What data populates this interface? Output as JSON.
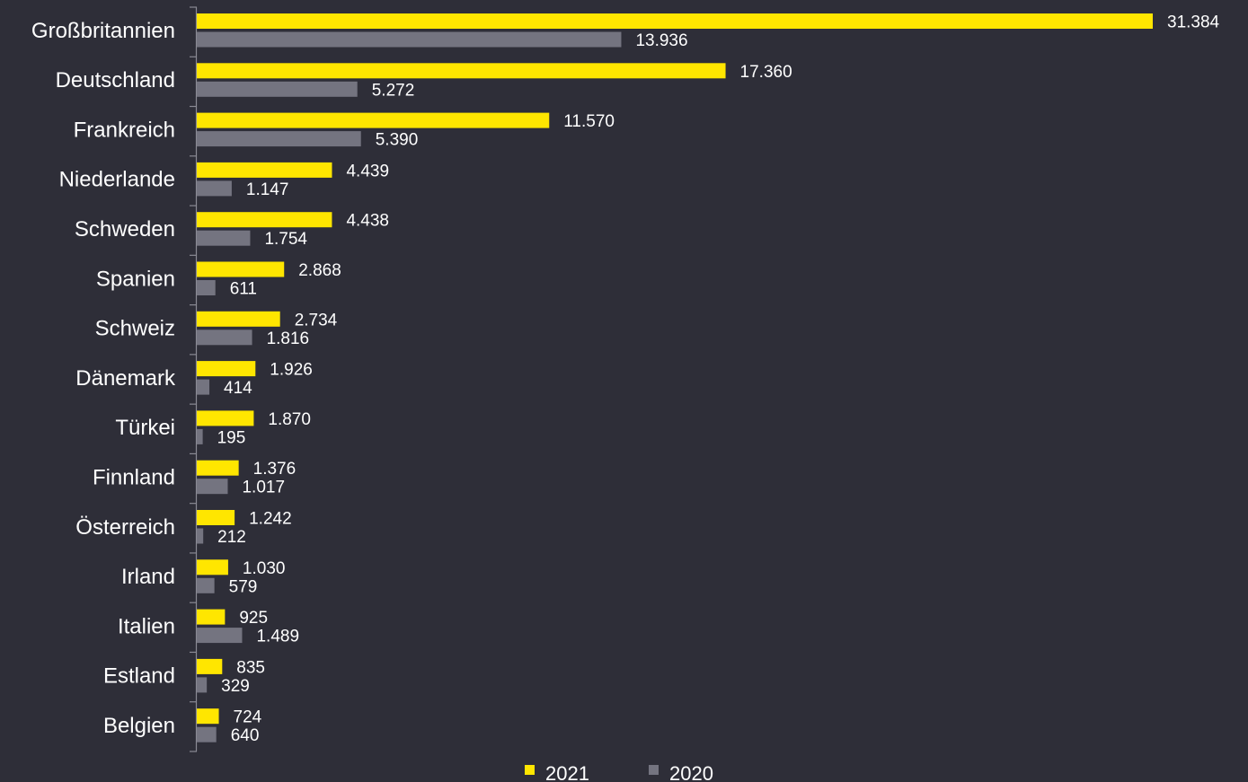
{
  "chart_data": {
    "type": "bar",
    "orientation": "horizontal",
    "categories": [
      "Großbritannien",
      "Deutschland",
      "Frankreich",
      "Niederlande",
      "Schweden",
      "Spanien",
      "Schweiz",
      "Dänemark",
      "Türkei",
      "Finnland",
      "Österreich",
      "Irland",
      "Italien",
      "Estland",
      "Belgien"
    ],
    "series": [
      {
        "name": "2021",
        "color": "#ffe600",
        "values": [
          31384,
          17360,
          11570,
          4439,
          4438,
          2868,
          2734,
          1926,
          1870,
          1376,
          1242,
          1030,
          925,
          835,
          724
        ],
        "labels": [
          "31.384",
          "17.360",
          "11.570",
          "4.439",
          "4.438",
          "2.868",
          "2.734",
          "1.926",
          "1.870",
          "1.376",
          "1.242",
          "1.030",
          "925",
          "835",
          "724"
        ]
      },
      {
        "name": "2020",
        "color": "#747480",
        "values": [
          13936,
          5272,
          5390,
          1147,
          1754,
          611,
          1816,
          414,
          195,
          1017,
          212,
          579,
          1489,
          329,
          640
        ],
        "labels": [
          "13.936",
          "5.272",
          "5.390",
          "1.147",
          "1.754",
          "611",
          "1.816",
          "414",
          "195",
          "1.017",
          "212",
          "579",
          "1.489",
          "329",
          "640"
        ]
      }
    ],
    "title": "",
    "xlabel": "",
    "ylabel": "",
    "grid": false,
    "legend": "bottom-center"
  }
}
